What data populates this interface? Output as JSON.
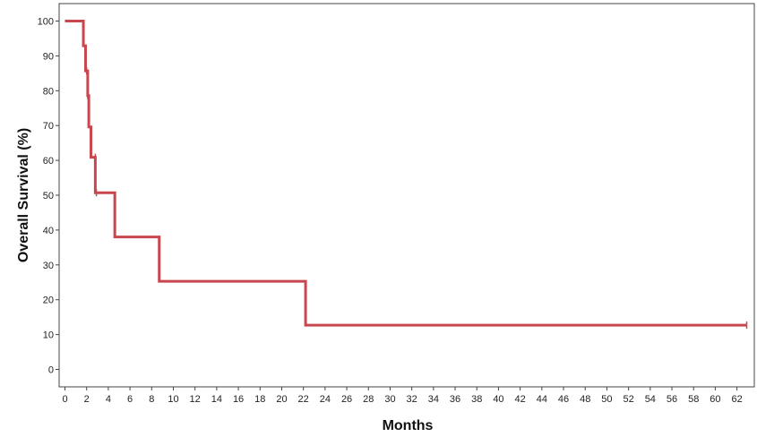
{
  "chart_data": {
    "type": "line",
    "subtype": "kaplan-meier-step",
    "title": "",
    "xlabel": "Months",
    "ylabel": "Overall Survival (%)",
    "xlim": [
      0,
      63
    ],
    "ylim": [
      -5,
      105
    ],
    "x_ticks": [
      0,
      2,
      4,
      6,
      8,
      10,
      12,
      14,
      16,
      18,
      20,
      22,
      24,
      26,
      28,
      30,
      32,
      34,
      36,
      38,
      40,
      42,
      44,
      46,
      48,
      50,
      52,
      54,
      56,
      58,
      60,
      62
    ],
    "y_ticks": [
      0,
      10,
      20,
      30,
      40,
      50,
      60,
      70,
      80,
      90,
      100
    ],
    "grid": false,
    "legend": "none",
    "series": [
      {
        "color": "#c8474f",
        "steps": [
          {
            "x": 0,
            "y": 100
          },
          {
            "x": 1.7,
            "y": 92.9
          },
          {
            "x": 1.9,
            "y": 85.7
          },
          {
            "x": 2.1,
            "y": 78.6
          },
          {
            "x": 2.2,
            "y": 69.6
          },
          {
            "x": 2.4,
            "y": 60.9
          },
          {
            "x": 2.8,
            "y": 50.7
          },
          {
            "x": 4.6,
            "y": 38.0
          },
          {
            "x": 8.7,
            "y": 25.3
          },
          {
            "x": 22.2,
            "y": 12.7
          }
        ],
        "end_x": 62.9,
        "censored": [
          {
            "x": 2.0,
            "y": 85.7
          },
          {
            "x": 2.1,
            "y": 78.6
          },
          {
            "x": 2.8,
            "y": 60.9
          },
          {
            "x": 2.9,
            "y": 50.7
          },
          {
            "x": 62.9,
            "y": 12.7
          }
        ]
      }
    ]
  }
}
